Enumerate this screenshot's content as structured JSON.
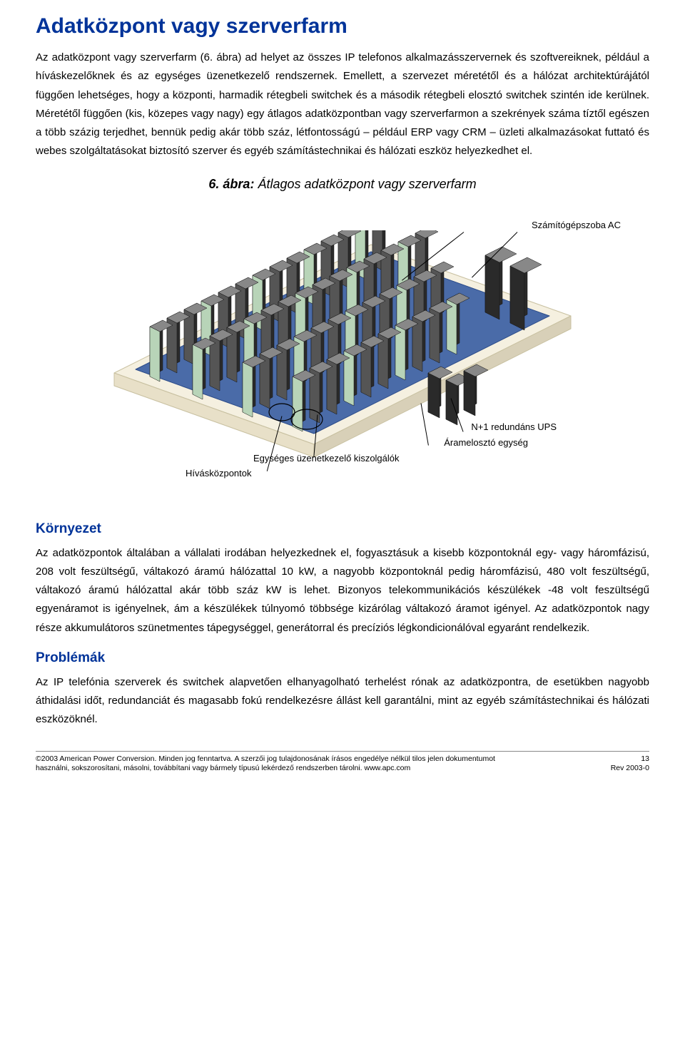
{
  "title": "Adatközpont vagy szerverfarm",
  "title_color": "#003399",
  "title_fontsize": 30,
  "para1": "Az adatközpont vagy szerverfarm (6. ábra) ad helyet az összes IP telefonos alkalmazásszervernek és szoftvereiknek, például a híváskezelőknek és az egységes üzenetkezelő rendszernek. Emellett, a szervezet méretétől és a hálózat architektúrájától függően lehetséges, hogy a központi, harmadik rétegbeli switchek és a második rétegbeli elosztó switchek szintén ide kerülnek. Méretétől függően (kis, közepes vagy nagy) egy átlagos adatközpontban vagy szerverfarmon a szekrények száma tíztől egészen a több százig terjedhet, bennük pedig akár több száz, létfontosságú – például ERP vagy CRM – üzleti alkalmazásokat futtató és webes szolgáltatásokat biztosító szerver és egyéb számítástechnikai és hálózati eszköz helyezkedhet el.",
  "body_fontsize": 15,
  "figure_caption_bold": "6. ábra:",
  "figure_caption_rest": " Átlagos adatközpont vagy szerverfarm",
  "figure_caption_fontsize": 18,
  "figure": {
    "floor_color": "#4a6ba8",
    "base_color": "#f5f0e0",
    "rack_dark": "#2a2a2a",
    "rack_mid": "#555555",
    "rack_light": "#888888",
    "rack_face": "#b8d4b8",
    "labels": {
      "ac": "Számítógépszoba AC",
      "ups": "N+1 redundáns UPS",
      "pdu": "Áramelosztó egység",
      "um": "Egységes üzenetkezelő kiszolgálók",
      "call": "Hívásközpontok"
    }
  },
  "h2_env": "Környezet",
  "para_env": "Az adatközpontok általában a vállalati irodában helyezkednek el, fogyasztásuk a kisebb központoknál egy- vagy háromfázisú, 208 volt feszültségű, váltakozó áramú hálózattal 10 kW, a nagyobb központoknál pedig háromfázisú, 480 volt feszültségű, váltakozó áramú hálózattal akár több száz kW is lehet. Bizonyos telekommunikációs készülékek -48 volt feszültségű egyenáramot is igényelnek, ám a készülékek túlnyomó többsége kizárólag váltakozó áramot igényel. Az adatközpontok nagy része akkumulátoros szünetmentes tápegységgel, generátorral és precíziós légkondicionálóval egyaránt rendelkezik.",
  "h2_prob": "Problémák",
  "para_prob": "Az IP telefónia szerverek és switchek alapvetően elhanyagolható terhelést rónak az adatközpontra, de esetükben nagyobb áthidalási időt, redundanciát és magasabb fokú rendelkezésre állást kell garantálni, mint az egyéb számítástechnikai és hálózati eszközöknél.",
  "h2_fontsize": 19,
  "footer": {
    "line1": "©2003 American Power Conversion. Minden jog fenntartva. A szerzői jog tulajdonosának írásos engedélye nélkül tilos jelen dokumentumot",
    "line2": "használni, sokszorosítani, másolni, továbbítani vagy bármely típusú lekérdező rendszerben tárolni. www.apc.com",
    "page": "13",
    "rev": "Rev 2003-0"
  }
}
